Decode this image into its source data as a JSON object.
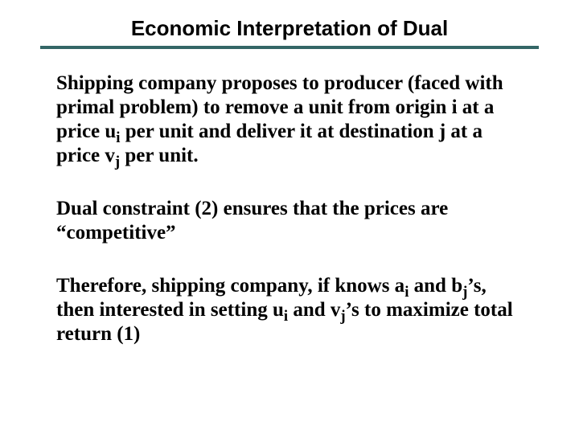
{
  "title": "Economic Interpretation of Dual",
  "colors": {
    "rule": "#336666",
    "text": "#000000",
    "background": "#ffffff"
  },
  "typography": {
    "title_font": "Arial",
    "title_size_pt": 26,
    "title_weight": "bold",
    "body_font": "Times New Roman",
    "body_size_pt": 25,
    "body_weight": "bold"
  },
  "paragraphs": {
    "p1": {
      "t1": "Shipping company proposes to producer (faced with primal problem) to remove a unit from origin i at a price u",
      "sub1": "i",
      "t2": " per unit and deliver it at destination j at a price v",
      "sub2": "j",
      "t3": " per unit."
    },
    "p2": {
      "t1": "Dual constraint (2) ensures that the prices are “competitive”"
    },
    "p3": {
      "t1": "Therefore, shipping company, if knows a",
      "sub1": "i",
      "t2": " and b",
      "sub2": "j",
      "t3": "’s, then interested in setting u",
      "sub3": "i",
      "t4": " and v",
      "sub4": "j",
      "t5": "’s to maximize total return (1)"
    }
  }
}
